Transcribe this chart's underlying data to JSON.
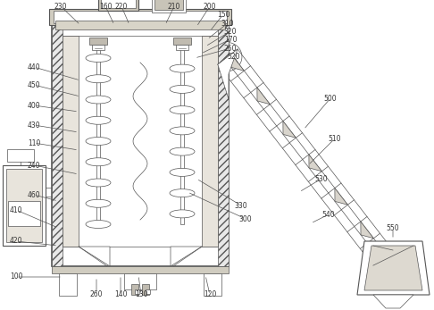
{
  "bg_color": "#ffffff",
  "line_color": "#555555",
  "hatch_color": "#888888",
  "label_color": "#333333",
  "fig_w": 4.86,
  "fig_h": 3.47,
  "dpi": 100
}
